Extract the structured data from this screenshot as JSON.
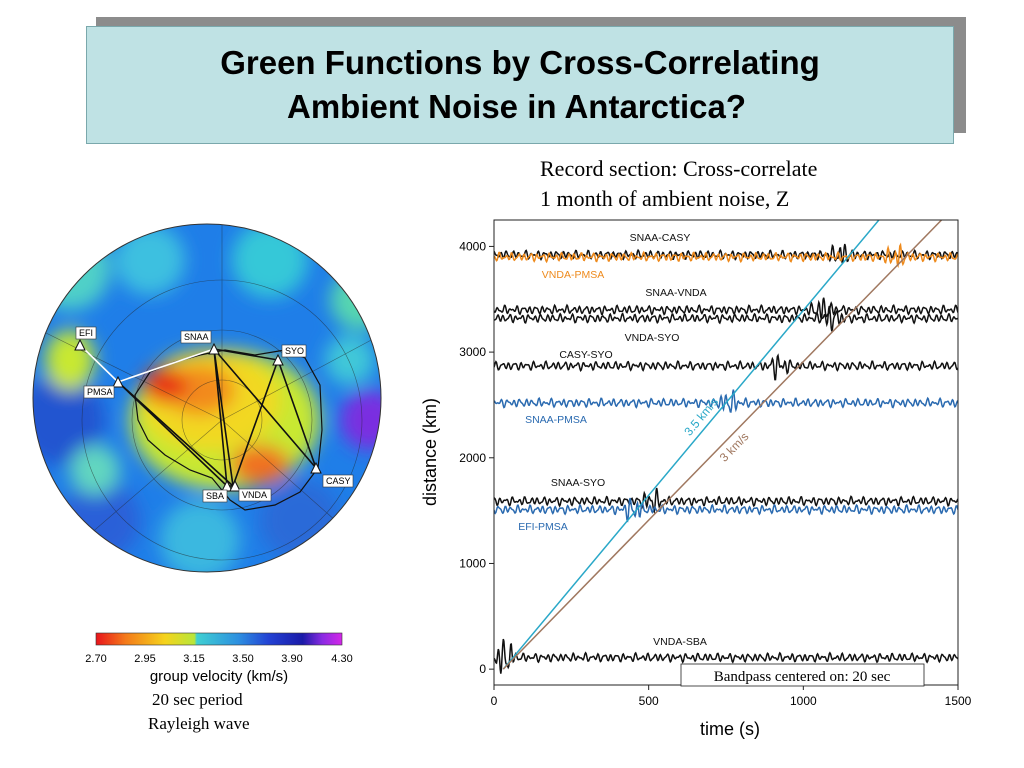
{
  "title": {
    "line1": "Green Functions by Cross-Correlating",
    "line2": "Ambient Noise in Antarctica?"
  },
  "record_caption": {
    "line1": "Record section: Cross-correlate",
    "line2": "1 month of ambient noise, Z"
  },
  "map": {
    "stations": [
      "EFI",
      "SNAA",
      "SYO",
      "PMSA",
      "CASY",
      "SBA",
      "VNDA"
    ],
    "colorbar": {
      "ticks": [
        "2.70",
        "2.95",
        "3.15",
        "3.50",
        "3.90",
        "4.30"
      ],
      "label": "group velocity (km/s)",
      "colors": [
        "#e8141b",
        "#f47a1a",
        "#f5d31c",
        "#b8e63a",
        "#3fd0d2",
        "#2d8fe0",
        "#2343d4",
        "#1a1aa8",
        "#8a2be2",
        "#d427e8"
      ]
    },
    "caption_line1": "20 sec period",
    "caption_line2": "Rayleigh wave"
  },
  "chart_data": {
    "type": "line",
    "xlabel": "time (s)",
    "ylabel": "distance (km)",
    "xlim": [
      0,
      1500
    ],
    "ylim": [
      -150,
      4250
    ],
    "x_ticks": [
      "0",
      "500",
      "1000",
      "1500"
    ],
    "y_ticks": [
      "0",
      "1000",
      "2000",
      "3000",
      "4000"
    ],
    "bandpass_note": "Bandpass centered on: 20 sec",
    "velocity_lines": [
      {
        "label": "3.5 km/s",
        "velocity": 3.5,
        "color": "#2aa8c8"
      },
      {
        "label": "3 km/s",
        "velocity": 3.0,
        "color": "#a07860"
      }
    ],
    "series": [
      {
        "name": "SNAA-CASY",
        "distance": 3920,
        "color": "#111111",
        "arrival": 1120
      },
      {
        "name": "VNDA-PMSA",
        "distance": 3900,
        "color": "#ee8a1c",
        "arrival": 1300
      },
      {
        "name": "SNAA-VNDA",
        "distance": 3400,
        "color": "#111111",
        "arrival": 1060
      },
      {
        "name": "VNDA-SYO",
        "distance": 3320,
        "color": "#111111",
        "arrival": 1090
      },
      {
        "name": "CASY-SYO",
        "distance": 2870,
        "color": "#111111",
        "arrival": 920
      },
      {
        "name": "SNAA-PMSA",
        "distance": 2520,
        "color": "#2a6ab0",
        "arrival": 760
      },
      {
        "name": "SNAA-SYO",
        "distance": 1590,
        "color": "#111111",
        "arrival": 510
      },
      {
        "name": "EFI-PMSA",
        "distance": 1510,
        "color": "#2a6ab0",
        "arrival": 450
      },
      {
        "name": "VNDA-SBA",
        "distance": 110,
        "color": "#111111",
        "arrival": 30
      }
    ]
  }
}
